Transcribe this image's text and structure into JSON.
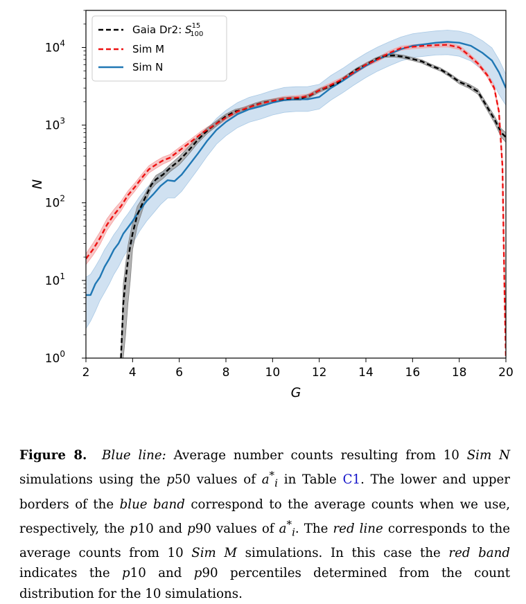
{
  "chart_data": {
    "type": "line",
    "xlabel": "G",
    "ylabel": "N",
    "xlim": [
      2,
      20
    ],
    "ylim": [
      1,
      30000
    ],
    "yscale": "log",
    "xticks": [
      "2",
      "4",
      "6",
      "8",
      "10",
      "12",
      "14",
      "16",
      "18",
      "20"
    ],
    "yticks": [
      {
        "value": 1,
        "base": "10",
        "exp": "0"
      },
      {
        "value": 10,
        "base": "10",
        "exp": "1"
      },
      {
        "value": 100,
        "base": "10",
        "exp": "2"
      },
      {
        "value": 1000,
        "base": "10",
        "exp": "3"
      },
      {
        "value": 10000,
        "base": "10",
        "exp": "4"
      }
    ],
    "legend": {
      "placement": "upper-left",
      "gaia_main": "Gaia Dr2: ",
      "gaia_symbol": "S",
      "gaia_sup": "15",
      "gaia_sub": "100",
      "sim_m": "Sim M",
      "sim_n": "Sim N"
    },
    "series": [
      {
        "key": "gaia",
        "color": "#000000",
        "style": "dashed",
        "band_color": "#808080",
        "x": [
          3.5,
          3.6,
          3.7,
          3.8,
          3.9,
          4.0,
          4.2,
          4.5,
          4.8,
          5.0,
          5.3,
          5.6,
          6.0,
          6.4,
          6.8,
          7.2,
          7.6,
          8.0,
          8.4,
          8.8,
          9.2,
          9.6,
          10.0,
          10.4,
          10.8,
          11.2,
          11.6,
          12.0,
          12.4,
          12.8,
          13.2,
          13.6,
          14.0,
          14.4,
          14.8,
          15.2,
          15.6,
          16.0,
          16.4,
          16.8,
          17.2,
          17.6,
          18.0,
          18.4,
          18.8,
          19.2,
          19.5,
          19.8,
          20.0
        ],
        "y": [
          1,
          5,
          10,
          18,
          28,
          40,
          70,
          110,
          170,
          200,
          230,
          280,
          350,
          470,
          650,
          850,
          1050,
          1300,
          1500,
          1600,
          1800,
          1950,
          2050,
          2150,
          2200,
          2200,
          2400,
          2800,
          3100,
          3500,
          4300,
          5200,
          6000,
          7000,
          7800,
          7900,
          7600,
          7100,
          6600,
          5800,
          5200,
          4400,
          3600,
          3200,
          2700,
          1700,
          1200,
          800,
          700
        ],
        "band_lo": [
          1,
          1,
          2,
          5,
          10,
          25,
          50,
          95,
          150,
          175,
          205,
          250,
          310,
          420,
          590,
          780,
          970,
          1210,
          1400,
          1500,
          1700,
          1840,
          1940,
          2040,
          2090,
          2090,
          2280,
          2660,
          2950,
          3330,
          4100,
          4960,
          5720,
          6670,
          7440,
          7530,
          7240,
          6760,
          6280,
          5520,
          4950,
          4180,
          3400,
          3000,
          2500,
          1550,
          1080,
          700,
          600
        ],
        "band_hi": [
          1,
          9,
          16,
          28,
          40,
          55,
          90,
          125,
          185,
          225,
          255,
          310,
          395,
          525,
          715,
          925,
          1135,
          1390,
          1600,
          1700,
          1900,
          2060,
          2160,
          2260,
          2310,
          2310,
          2520,
          2940,
          3250,
          3670,
          4500,
          5440,
          6280,
          7330,
          8160,
          8270,
          7960,
          7440,
          6920,
          6080,
          5450,
          4620,
          3800,
          3400,
          2900,
          1850,
          1320,
          900,
          800
        ]
      },
      {
        "key": "sim_m",
        "color": "#ee1111",
        "style": "dashed",
        "band_color": "#f4a0a0",
        "x": [
          2.0,
          2.3,
          2.6,
          2.9,
          3.2,
          3.5,
          3.8,
          4.1,
          4.4,
          4.7,
          5.0,
          5.3,
          5.6,
          6.0,
          6.5,
          7.0,
          7.5,
          8.0,
          8.5,
          9.0,
          9.5,
          10.0,
          10.5,
          11.0,
          11.5,
          12.0,
          12.5,
          13.0,
          13.5,
          14.0,
          14.5,
          15.0,
          15.5,
          16.0,
          16.5,
          17.0,
          17.5,
          18.0,
          18.4,
          18.8,
          19.2,
          19.5,
          19.7,
          19.85,
          19.95,
          20.0
        ],
        "y": [
          19,
          25,
          35,
          52,
          70,
          90,
          125,
          160,
          210,
          270,
          310,
          350,
          380,
          470,
          610,
          800,
          1000,
          1250,
          1500,
          1700,
          1900,
          2050,
          2200,
          2250,
          2350,
          2800,
          3300,
          3900,
          4800,
          6000,
          7000,
          8500,
          9800,
          10200,
          10500,
          10700,
          10800,
          10000,
          8000,
          6200,
          4400,
          3000,
          1500,
          300,
          5,
          1
        ],
        "band_lo": [
          16,
          21,
          29,
          44,
          60,
          78,
          110,
          142,
          188,
          242,
          278,
          315,
          345,
          428,
          560,
          740,
          930,
          1165,
          1400,
          1590,
          1780,
          1920,
          2060,
          2110,
          2200,
          2620,
          3100,
          3660,
          4510,
          5640,
          6580,
          8000,
          9220,
          9600,
          9880,
          10070,
          10160,
          9400,
          7520,
          5830,
          4140,
          2820,
          1410,
          280,
          4,
          1
        ],
        "band_hi": [
          22,
          30,
          42,
          62,
          82,
          104,
          142,
          180,
          234,
          300,
          344,
          388,
          418,
          515,
          662,
          862,
          1075,
          1340,
          1605,
          1815,
          2025,
          2185,
          2345,
          2395,
          2505,
          2985,
          3510,
          4150,
          5100,
          6380,
          7440,
          9030,
          10400,
          10830,
          11150,
          11360,
          11470,
          10620,
          8500,
          6580,
          4670,
          3190,
          1590,
          320,
          6,
          1
        ]
      },
      {
        "key": "sim_n",
        "color": "#1f77b4",
        "style": "solid",
        "band_color": "#a9c9e5",
        "x": [
          2.0,
          2.2,
          2.4,
          2.6,
          2.8,
          3.0,
          3.2,
          3.4,
          3.6,
          3.8,
          4.0,
          4.3,
          4.6,
          4.9,
          5.2,
          5.5,
          5.8,
          6.1,
          6.4,
          6.8,
          7.2,
          7.6,
          8.0,
          8.5,
          9.0,
          9.5,
          10.0,
          10.5,
          11.0,
          11.5,
          12.0,
          12.5,
          13.0,
          13.5,
          14.0,
          14.5,
          15.0,
          15.5,
          16.0,
          16.5,
          17.0,
          17.5,
          18.0,
          18.5,
          19.0,
          19.4,
          19.7,
          20.0
        ],
        "y": [
          6.5,
          6.5,
          9.0,
          11,
          15,
          19,
          25,
          30,
          40,
          48,
          58,
          80,
          105,
          130,
          165,
          195,
          190,
          230,
          300,
          430,
          630,
          870,
          1100,
          1380,
          1600,
          1750,
          1950,
          2100,
          2150,
          2150,
          2300,
          3000,
          3700,
          4700,
          5800,
          7000,
          8200,
          9500,
          10500,
          11000,
          11500,
          11800,
          11500,
          10500,
          8500,
          6800,
          4800,
          3000
        ],
        "band_lo": [
          2.4,
          3.0,
          4.0,
          5.5,
          7.0,
          9.0,
          12,
          15,
          20,
          25,
          30,
          43,
          58,
          74,
          95,
          115,
          115,
          140,
          185,
          270,
          400,
          570,
          730,
          930,
          1090,
          1200,
          1350,
          1460,
          1500,
          1500,
          1610,
          2100,
          2600,
          3300,
          4100,
          4950,
          5800,
          6700,
          7400,
          7700,
          8000,
          8100,
          7700,
          6700,
          5100,
          3800,
          2500,
          1800
        ],
        "band_hi": [
          11,
          12,
          15,
          19,
          25,
          31,
          39,
          47,
          60,
          72,
          88,
          120,
          155,
          190,
          240,
          280,
          275,
          330,
          430,
          610,
          890,
          1220,
          1550,
          1950,
          2280,
          2500,
          2800,
          3050,
          3120,
          3130,
          3350,
          4350,
          5360,
          6800,
          8400,
          10100,
          11800,
          13600,
          15000,
          15700,
          16300,
          16700,
          16200,
          14800,
          12200,
          9900,
          7000,
          4500
        ]
      }
    ]
  },
  "caption": {
    "label": "Figure 8.",
    "p1": "Blue line:",
    "p2": " Average number counts resulting from 10 ",
    "p3": "Sim N",
    "p4": " simulations using the ",
    "p5": "p",
    "p6": "50 values of ",
    "p7": "a",
    "p7sup": "*",
    "p7sub": "i",
    "p8": " in Table ",
    "p9": "C1",
    "p10": ". The lower and upper borders of the ",
    "p11": "blue band",
    "p12": " correspond to the average counts when we use, respectively, the ",
    "p13": "p",
    "p14": "10 and ",
    "p15": "p",
    "p16": "90 values of ",
    "p17": "a",
    "p17sup": "*",
    "p17sub": "i",
    "p18": ". The ",
    "p19": "red line",
    "p20": " corresponds to the average counts from 10 ",
    "p21": "Sim M",
    "p22": " simulations. In this case the ",
    "p23": "red band",
    "p24": " indicates the ",
    "p25": "p",
    "p26": "10 and ",
    "p27": "p",
    "p28": "90 percentiles determined from the count distribution for the 10 simulations."
  }
}
